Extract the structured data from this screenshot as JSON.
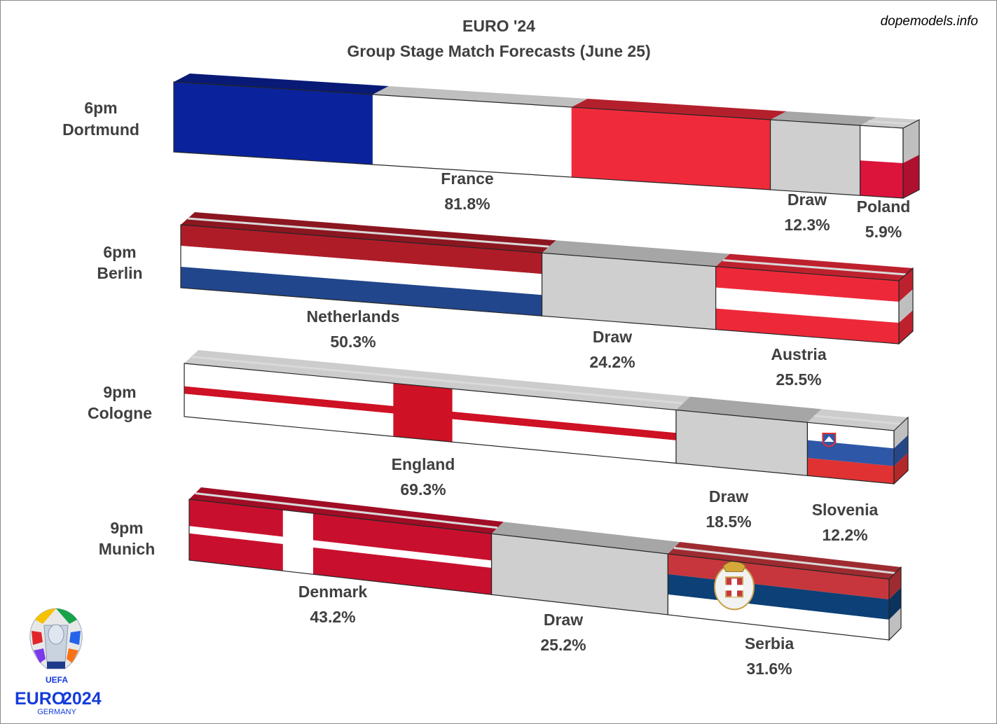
{
  "title": "EURO '24",
  "subtitle": "Group Stage Match Forecasts (June 25)",
  "credit": "dopemodels.info",
  "logo": {
    "uefa": "UEFA",
    "euro": "EURO",
    "year": "2024",
    "country": "GERMANY"
  },
  "chart_data": {
    "type": "bar",
    "orientation": "horizontal",
    "stacked": true,
    "unit": "%",
    "categories": [
      "6pm Dortmund",
      "6pm Berlin",
      "9pm Cologne",
      "9pm Munich"
    ],
    "matches": [
      {
        "time": "6pm",
        "venue": "Dortmund",
        "segments": [
          {
            "name": "France",
            "value": 81.8,
            "value_label": "81.8%",
            "flag": "france"
          },
          {
            "name": "Draw",
            "value": 12.3,
            "value_label": "12.3%",
            "flag": "draw"
          },
          {
            "name": "Poland",
            "value": 5.9,
            "value_label": "5.9%",
            "flag": "poland"
          }
        ]
      },
      {
        "time": "6pm",
        "venue": "Berlin",
        "segments": [
          {
            "name": "Netherlands",
            "value": 50.3,
            "value_label": "50.3%",
            "flag": "netherlands"
          },
          {
            "name": "Draw",
            "value": 24.2,
            "value_label": "24.2%",
            "flag": "draw"
          },
          {
            "name": "Austria",
            "value": 25.5,
            "value_label": "25.5%",
            "flag": "austria"
          }
        ]
      },
      {
        "time": "9pm",
        "venue": "Cologne",
        "segments": [
          {
            "name": "England",
            "value": 69.3,
            "value_label": "69.3%",
            "flag": "england"
          },
          {
            "name": "Draw",
            "value": 18.5,
            "value_label": "18.5%",
            "flag": "draw"
          },
          {
            "name": "Slovenia",
            "value": 12.2,
            "value_label": "12.2%",
            "flag": "slovenia"
          }
        ]
      },
      {
        "time": "9pm",
        "venue": "Munich",
        "segments": [
          {
            "name": "Denmark",
            "value": 43.2,
            "value_label": "43.2%",
            "flag": "denmark"
          },
          {
            "name": "Draw",
            "value": 25.2,
            "value_label": "25.2%",
            "flag": "draw"
          },
          {
            "name": "Serbia",
            "value": 31.6,
            "value_label": "31.6%",
            "flag": "serbia"
          }
        ]
      }
    ]
  },
  "colors": {
    "france_blue": "#0a239c",
    "france_red": "#ef2b3b",
    "draw": "#cfcfcf",
    "draw_top": "#a6a6a6",
    "poland_red": "#dc143c",
    "netherlands_red": "#ae1c28",
    "netherlands_blue": "#21468b",
    "austria_red": "#ed2939",
    "england_red": "#ce1124",
    "slovenia_blue": "#2f57a8",
    "slovenia_red": "#e03232",
    "denmark_red": "#c8102e",
    "serbia_red": "#c6363c",
    "serbia_blue": "#0c4076",
    "label_text": "#404040"
  }
}
